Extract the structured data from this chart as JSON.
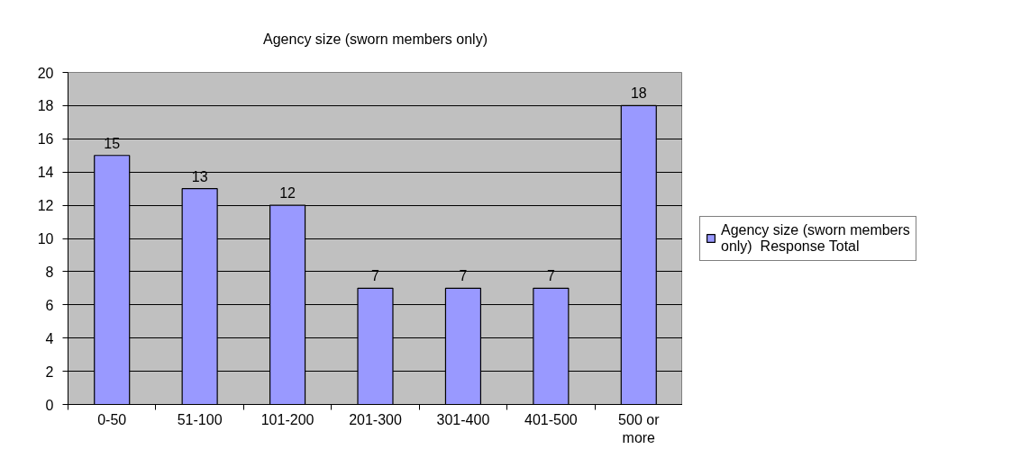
{
  "chart_data": {
    "type": "bar",
    "title": "Agency size (sworn members only)",
    "categories": [
      "0-50",
      "51-100",
      "101-200",
      "201-300",
      "301-400",
      "401-500",
      "500 or more"
    ],
    "series": [
      {
        "name": "Agency size (sworn members only)  Response Total",
        "color": "#9999ff",
        "values": [
          15,
          13,
          12,
          7,
          7,
          7,
          18
        ]
      }
    ],
    "ylim": [
      0,
      20
    ],
    "yticks": [
      0,
      2,
      4,
      6,
      8,
      10,
      12,
      14,
      16,
      18,
      20
    ],
    "grid": "y",
    "legend": "right",
    "data_labels": true
  }
}
